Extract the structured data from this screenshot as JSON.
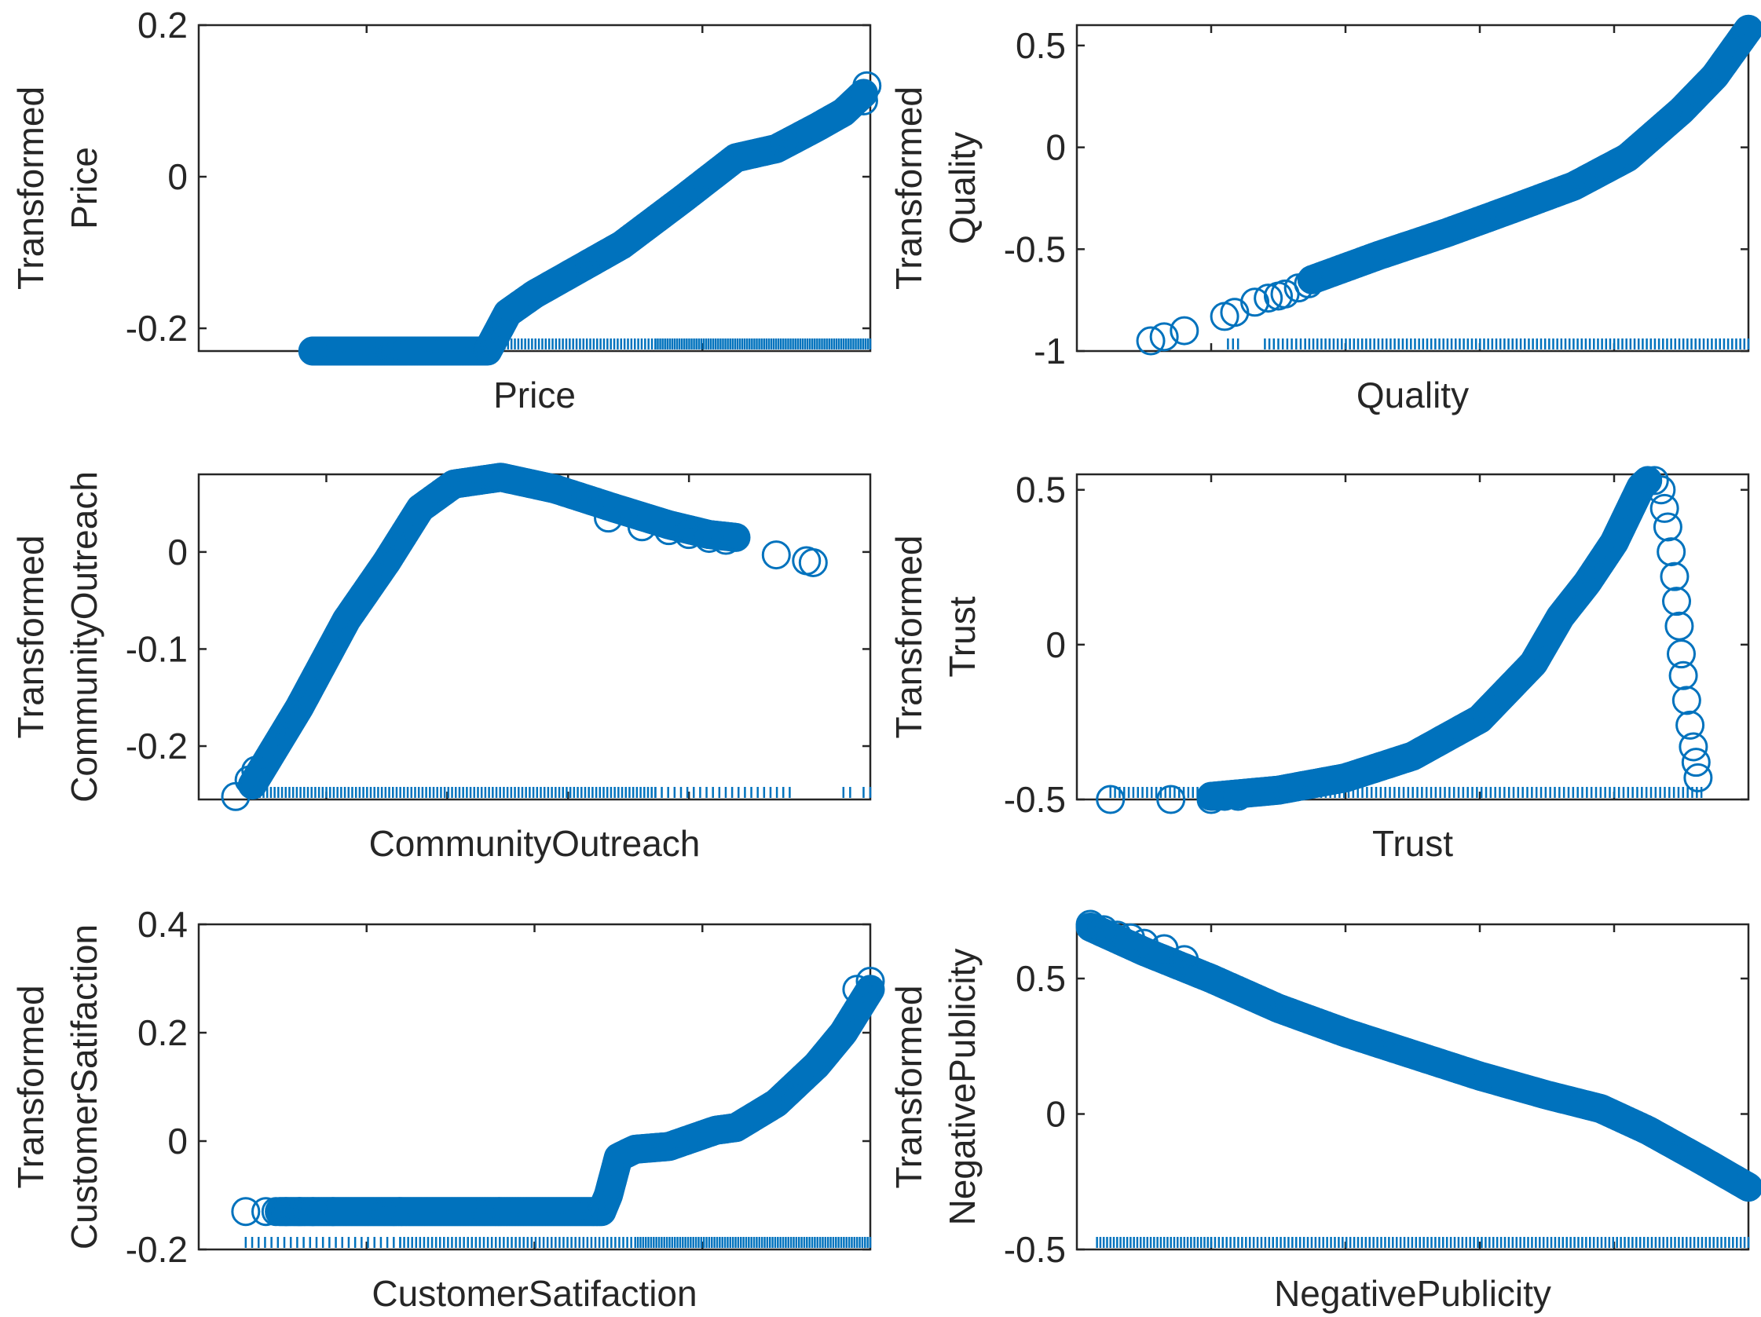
{
  "colors": {
    "marker": "#0072BD",
    "axis": "#262626",
    "background": "#ffffff"
  },
  "chart_data": [
    {
      "type": "scatter",
      "title": "",
      "xlabel": "Price",
      "ylabel_lines": [
        "Transformed",
        "Price"
      ],
      "xlim": [
        0,
        1
      ],
      "ylim": [
        -0.23,
        0.2
      ],
      "yticks": [
        -0.2,
        0,
        0.2
      ],
      "yticklabels": [
        "-0.2",
        "0",
        "0.2"
      ],
      "xticks": [
        0.25,
        0.75
      ],
      "grid": false,
      "curve": [
        [
          0.17,
          -0.23
        ],
        [
          0.43,
          -0.23
        ],
        [
          0.46,
          -0.18
        ],
        [
          0.5,
          -0.155
        ],
        [
          0.57,
          -0.12
        ],
        [
          0.63,
          -0.09
        ],
        [
          0.72,
          -0.03
        ],
        [
          0.8,
          0.025
        ],
        [
          0.86,
          0.037
        ],
        [
          0.92,
          0.065
        ],
        [
          0.96,
          0.085
        ],
        [
          0.99,
          0.11
        ]
      ],
      "sparse_points": [
        [
          0.17,
          -0.23
        ],
        [
          0.19,
          -0.23
        ],
        [
          0.21,
          -0.23
        ],
        [
          0.23,
          -0.23
        ],
        [
          0.25,
          -0.23
        ],
        [
          0.27,
          -0.23
        ],
        [
          0.99,
          0.1
        ],
        [
          0.995,
          0.12
        ]
      ],
      "rug": [
        [
          0.17,
          0.43,
          55
        ],
        [
          0.43,
          0.68,
          50
        ],
        [
          0.68,
          1.0,
          90
        ]
      ]
    },
    {
      "type": "scatter",
      "title": "",
      "xlabel": "Quality",
      "ylabel_lines": [
        "Transformed",
        "Quality"
      ],
      "xlim": [
        0,
        1
      ],
      "ylim": [
        -1,
        0.6
      ],
      "yticks": [
        -1,
        -0.5,
        0,
        0.5
      ],
      "yticklabels": [
        "-1",
        "-0.5",
        "0",
        "0.5"
      ],
      "xticks": [
        0.2,
        0.4,
        0.6,
        0.8
      ],
      "grid": false,
      "curve": [
        [
          0.35,
          -0.65
        ],
        [
          0.45,
          -0.53
        ],
        [
          0.55,
          -0.42
        ],
        [
          0.65,
          -0.3
        ],
        [
          0.74,
          -0.19
        ],
        [
          0.82,
          -0.05
        ],
        [
          0.9,
          0.18
        ],
        [
          0.95,
          0.35
        ],
        [
          1.0,
          0.58
        ]
      ],
      "sparse_points": [
        [
          0.11,
          -0.95
        ],
        [
          0.13,
          -0.93
        ],
        [
          0.16,
          -0.9
        ],
        [
          0.22,
          -0.83
        ],
        [
          0.235,
          -0.81
        ],
        [
          0.265,
          -0.76
        ],
        [
          0.285,
          -0.74
        ],
        [
          0.3,
          -0.73
        ],
        [
          0.31,
          -0.72
        ],
        [
          0.33,
          -0.69
        ],
        [
          0.345,
          -0.67
        ]
      ],
      "rug": [
        [
          0.225,
          0.24,
          3
        ],
        [
          0.28,
          0.34,
          10
        ],
        [
          0.34,
          1.0,
          110
        ]
      ]
    },
    {
      "type": "scatter",
      "title": "",
      "xlabel": "CommunityOutreach",
      "ylabel_lines": [
        "Transformed",
        "CommunityOutreach"
      ],
      "xlim": [
        0,
        1
      ],
      "ylim": [
        -0.255,
        0.08
      ],
      "yticks": [
        -0.2,
        -0.1,
        0
      ],
      "yticklabels": [
        "-0.2",
        "-0.1",
        "0"
      ],
      "xticks": [
        0.19,
        0.37,
        0.55,
        0.73
      ],
      "grid": false,
      "curve": [
        [
          0.08,
          -0.24
        ],
        [
          0.15,
          -0.16
        ],
        [
          0.22,
          -0.07
        ],
        [
          0.28,
          -0.01
        ],
        [
          0.33,
          0.045
        ],
        [
          0.38,
          0.07
        ],
        [
          0.45,
          0.077
        ],
        [
          0.53,
          0.065
        ],
        [
          0.62,
          0.045
        ],
        [
          0.7,
          0.028
        ],
        [
          0.76,
          0.018
        ],
        [
          0.8,
          0.015
        ]
      ],
      "sparse_points": [
        [
          0.055,
          -0.252
        ],
        [
          0.075,
          -0.235
        ],
        [
          0.085,
          -0.225
        ],
        [
          0.61,
          0.035
        ],
        [
          0.66,
          0.026
        ],
        [
          0.7,
          0.022
        ],
        [
          0.73,
          0.018
        ],
        [
          0.76,
          0.014
        ],
        [
          0.785,
          0.012
        ],
        [
          0.86,
          -0.003
        ],
        [
          0.905,
          -0.009
        ],
        [
          0.915,
          -0.011
        ]
      ],
      "rug": [
        [
          0.08,
          0.68,
          110
        ],
        [
          0.68,
          0.88,
          22
        ],
        [
          0.96,
          0.97,
          2
        ],
        [
          0.99,
          1.0,
          2
        ]
      ]
    },
    {
      "type": "scatter",
      "title": "",
      "xlabel": "Trust",
      "ylabel_lines": [
        "Transformed",
        "Trust"
      ],
      "xlim": [
        0,
        1
      ],
      "ylim": [
        -0.5,
        0.55
      ],
      "yticks": [
        -0.5,
        0,
        0.5
      ],
      "yticklabels": [
        "-0.5",
        "0",
        "0.5"
      ],
      "xticks": [
        0.2,
        0.4,
        0.6,
        0.8
      ],
      "grid": false,
      "curve": [
        [
          0.2,
          -0.49
        ],
        [
          0.3,
          -0.47
        ],
        [
          0.4,
          -0.43
        ],
        [
          0.5,
          -0.36
        ],
        [
          0.6,
          -0.24
        ],
        [
          0.68,
          -0.06
        ],
        [
          0.72,
          0.09
        ],
        [
          0.76,
          0.2
        ],
        [
          0.8,
          0.33
        ],
        [
          0.82,
          0.42
        ],
        [
          0.84,
          0.51
        ],
        [
          0.85,
          0.53
        ]
      ],
      "sparse_points": [
        [
          0.86,
          0.53
        ],
        [
          0.87,
          0.5
        ],
        [
          0.875,
          0.44
        ],
        [
          0.88,
          0.38
        ],
        [
          0.885,
          0.3
        ],
        [
          0.89,
          0.22
        ],
        [
          0.893,
          0.14
        ],
        [
          0.897,
          0.06
        ],
        [
          0.9,
          -0.03
        ],
        [
          0.903,
          -0.1
        ],
        [
          0.908,
          -0.18
        ],
        [
          0.913,
          -0.26
        ],
        [
          0.918,
          -0.33
        ],
        [
          0.922,
          -0.38
        ],
        [
          0.925,
          -0.43
        ],
        [
          0.05,
          -0.5
        ],
        [
          0.14,
          -0.5
        ],
        [
          0.2,
          -0.5
        ],
        [
          0.22,
          -0.49
        ],
        [
          0.24,
          -0.49
        ]
      ],
      "rug": [
        [
          0.05,
          0.93,
          130
        ]
      ]
    },
    {
      "type": "scatter",
      "title": "",
      "xlabel": "CustomerSatifaction",
      "ylabel_lines": [
        "Transformed",
        "CustomerSatifaction"
      ],
      "xlim": [
        0,
        1
      ],
      "ylim": [
        -0.2,
        0.4
      ],
      "yticks": [
        -0.2,
        0,
        0.2,
        0.4
      ],
      "yticklabels": [
        "-0.2",
        "0",
        "0.2",
        "0.4"
      ],
      "xticks": [
        0.25,
        0.5,
        0.75
      ],
      "grid": false,
      "curve": [
        [
          0.12,
          -0.13
        ],
        [
          0.6,
          -0.13
        ],
        [
          0.61,
          -0.1
        ],
        [
          0.625,
          -0.03
        ],
        [
          0.65,
          -0.015
        ],
        [
          0.7,
          -0.01
        ],
        [
          0.77,
          0.02
        ],
        [
          0.8,
          0.025
        ],
        [
          0.86,
          0.07
        ],
        [
          0.92,
          0.14
        ],
        [
          0.96,
          0.2
        ],
        [
          1.0,
          0.28
        ]
      ],
      "sparse_points": [
        [
          0.07,
          -0.13
        ],
        [
          0.1,
          -0.13
        ],
        [
          0.115,
          -0.13
        ],
        [
          0.13,
          -0.13
        ],
        [
          0.15,
          -0.13
        ],
        [
          0.17,
          -0.13
        ],
        [
          0.2,
          -0.13
        ],
        [
          0.98,
          0.28
        ],
        [
          1.0,
          0.295
        ]
      ],
      "rug": [
        [
          0.07,
          0.3,
          25
        ],
        [
          0.3,
          0.65,
          60
        ],
        [
          0.65,
          1.0,
          90
        ]
      ]
    },
    {
      "type": "scatter",
      "title": "",
      "xlabel": "NegativePublicity",
      "ylabel_lines": [
        "Transformed",
        "NegativePublicity"
      ],
      "xlim": [
        0,
        1
      ],
      "ylim": [
        -0.5,
        0.7
      ],
      "yticks": [
        -0.5,
        0,
        0.5
      ],
      "yticklabels": [
        "-0.5",
        "0",
        "0.5"
      ],
      "xticks": [
        0.2,
        0.4,
        0.6,
        0.8
      ],
      "grid": false,
      "curve": [
        [
          0.02,
          0.69
        ],
        [
          0.1,
          0.6
        ],
        [
          0.2,
          0.5
        ],
        [
          0.3,
          0.39
        ],
        [
          0.4,
          0.3
        ],
        [
          0.5,
          0.22
        ],
        [
          0.6,
          0.14
        ],
        [
          0.7,
          0.07
        ],
        [
          0.78,
          0.02
        ],
        [
          0.85,
          -0.06
        ],
        [
          0.93,
          -0.17
        ],
        [
          1.0,
          -0.27
        ]
      ],
      "sparse_points": [
        [
          0.02,
          0.7
        ],
        [
          0.04,
          0.68
        ],
        [
          0.06,
          0.66
        ],
        [
          0.08,
          0.65
        ],
        [
          0.1,
          0.63
        ],
        [
          0.13,
          0.61
        ],
        [
          0.16,
          0.57
        ]
      ],
      "rug": [
        [
          0.03,
          0.2,
          35
        ],
        [
          0.2,
          1.0,
          140
        ]
      ]
    }
  ]
}
